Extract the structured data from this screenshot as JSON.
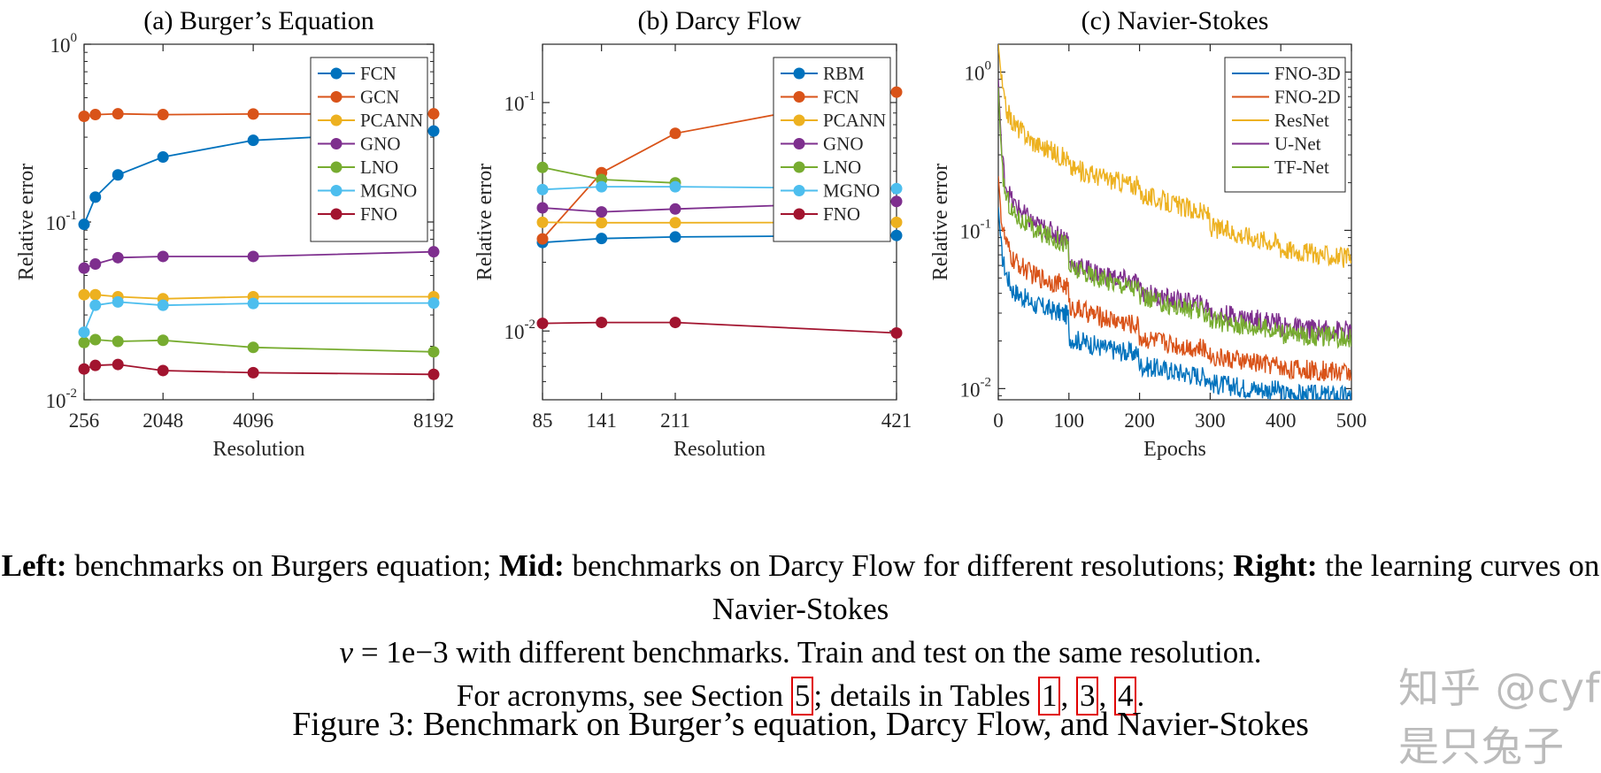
{
  "chart_data": [
    {
      "type": "line",
      "title": "(a) Burger’s Equation",
      "xlabel": "Resolution",
      "ylabel": "Relative error",
      "yscale": "log",
      "ylim": [
        0.01,
        1
      ],
      "xlim": [
        256,
        8192
      ],
      "xticks": [
        256,
        2048,
        4096,
        8192
      ],
      "xtick_labels": [
        "256",
        "2048",
        "4096",
        "8192"
      ],
      "yticks": [
        {
          "value": 1,
          "base": "10",
          "exp": "0"
        },
        {
          "value": 0.1,
          "base": "10",
          "exp": "-1"
        },
        {
          "value": 0.01,
          "base": "10",
          "exp": "-2"
        }
      ],
      "legend_position": "top-right",
      "x": [
        256,
        512,
        1024,
        2048,
        4096,
        8192
      ],
      "series": [
        {
          "name": "FCN",
          "color": "#0072BD",
          "values": [
            0.097,
            0.138,
            0.184,
            0.232,
            0.288,
            0.325
          ]
        },
        {
          "name": "GCN",
          "color": "#D95319",
          "values": [
            0.393,
            0.402,
            0.406,
            0.402,
            0.405,
            0.406
          ]
        },
        {
          "name": "PCANN",
          "color": "#EDB120",
          "values": [
            0.039,
            0.039,
            0.038,
            0.037,
            0.038,
            0.038
          ]
        },
        {
          "name": "GNO",
          "color": "#7E2F8E",
          "values": [
            0.055,
            0.058,
            0.063,
            0.064,
            0.064,
            0.068
          ]
        },
        {
          "name": "LNO",
          "color": "#77AC30",
          "values": [
            0.021,
            0.0218,
            0.0213,
            0.0216,
            0.0197,
            0.0186
          ]
        },
        {
          "name": "MGNO",
          "color": "#4DBEEE",
          "values": [
            0.024,
            0.034,
            0.0355,
            0.034,
            0.0348,
            0.035
          ]
        },
        {
          "name": "FNO",
          "color": "#A2142F",
          "values": [
            0.0149,
            0.0156,
            0.0158,
            0.0146,
            0.0142,
            0.0139
          ]
        }
      ]
    },
    {
      "type": "line",
      "title": "(b) Darcy Flow",
      "xlabel": "Resolution",
      "ylabel": "Relative error",
      "yscale": "log",
      "ylim": [
        0.005,
        0.18
      ],
      "xlim": [
        85,
        421
      ],
      "xticks": [
        85,
        141,
        211,
        421
      ],
      "xtick_labels": [
        "85",
        "141",
        "211",
        "421"
      ],
      "yticks": [
        {
          "value": 0.1,
          "base": "10",
          "exp": "-1"
        },
        {
          "value": 0.01,
          "base": "10",
          "exp": "-2"
        }
      ],
      "legend_position": "top-right",
      "x": [
        85,
        141,
        211,
        421
      ],
      "series": [
        {
          "name": "RBM",
          "color": "#0072BD",
          "values": [
            0.0244,
            0.0254,
            0.0258,
            0.0262
          ]
        },
        {
          "name": "FCN",
          "color": "#D95319",
          "values": [
            0.0253,
            0.0493,
            0.0733,
            0.1111
          ]
        },
        {
          "name": "PCANN",
          "color": "#EDB120",
          "values": [
            0.0299,
            0.0298,
            0.0298,
            0.0299
          ]
        },
        {
          "name": "GNO",
          "color": "#7E2F8E",
          "values": [
            0.0346,
            0.0332,
            0.0342,
            0.0369
          ]
        },
        {
          "name": "LNO",
          "color": "#77AC30",
          "values": [
            0.052,
            0.046,
            0.0445,
            null
          ]
        },
        {
          "name": "MGNO",
          "color": "#4DBEEE",
          "values": [
            0.0416,
            0.0428,
            0.0428,
            0.042
          ]
        },
        {
          "name": "FNO",
          "color": "#A2142F",
          "values": [
            0.0108,
            0.0109,
            0.0109,
            0.0098
          ]
        }
      ]
    },
    {
      "type": "line",
      "title": "(c) Navier-Stokes",
      "xlabel": "Epochs",
      "ylabel": "Relative error",
      "yscale": "log",
      "ylim": [
        0.0085,
        1.5
      ],
      "xlim": [
        0,
        500
      ],
      "xticks": [
        0,
        100,
        200,
        300,
        400,
        500
      ],
      "xtick_labels": [
        "0",
        "100",
        "200",
        "300",
        "400",
        "500"
      ],
      "yticks": [
        {
          "value": 1,
          "base": "10",
          "exp": "0"
        },
        {
          "value": 0.1,
          "base": "10",
          "exp": "-1"
        },
        {
          "value": 0.01,
          "base": "10",
          "exp": "-2"
        }
      ],
      "legend_position": "top-right",
      "x": [
        0,
        5,
        10,
        20,
        50,
        99,
        100,
        150,
        199,
        200,
        250,
        299,
        300,
        350,
        399,
        400,
        450,
        500
      ],
      "series": [
        {
          "name": "FNO-3D",
          "color": "#0072BD",
          "values": [
            0.14,
            0.07,
            0.055,
            0.042,
            0.034,
            0.029,
            0.021,
            0.018,
            0.0165,
            0.014,
            0.0128,
            0.0118,
            0.0108,
            0.0101,
            0.0097,
            0.0093,
            0.0091,
            0.009
          ]
        },
        {
          "name": "FNO-2D",
          "color": "#D95319",
          "values": [
            0.22,
            0.11,
            0.085,
            0.065,
            0.052,
            0.044,
            0.033,
            0.028,
            0.025,
            0.021,
            0.019,
            0.0175,
            0.016,
            0.0148,
            0.014,
            0.0134,
            0.013,
            0.0127
          ]
        },
        {
          "name": "ResNet",
          "color": "#EDB120",
          "values": [
            1.5,
            0.85,
            0.6,
            0.48,
            0.36,
            0.28,
            0.25,
            0.215,
            0.19,
            0.17,
            0.145,
            0.125,
            0.105,
            0.093,
            0.083,
            0.077,
            0.071,
            0.066
          ]
        },
        {
          "name": "U-Net",
          "color": "#7E2F8E",
          "values": [
            0.9,
            0.3,
            0.2,
            0.15,
            0.11,
            0.088,
            0.062,
            0.052,
            0.046,
            0.041,
            0.036,
            0.033,
            0.03,
            0.028,
            0.026,
            0.0245,
            0.0237,
            0.0232
          ]
        },
        {
          "name": "TF-Net",
          "color": "#77AC30",
          "values": [
            0.8,
            0.25,
            0.17,
            0.13,
            0.1,
            0.082,
            0.058,
            0.049,
            0.043,
            0.038,
            0.033,
            0.03,
            0.027,
            0.025,
            0.0235,
            0.0222,
            0.0215,
            0.021
          ]
        }
      ]
    }
  ],
  "caption": {
    "left_label": "Left:",
    "left_text": " benchmarks on Burgers equation; ",
    "mid_label": "Mid:",
    "mid_text": " benchmarks on Darcy Flow for different resolutions; ",
    "right_label": "Right:",
    "right_text": " the learning curves on Navier-Stokes ",
    "nu_symbol": "ν",
    "nu_value": " = 1e−3",
    "right_text_2": " with different benchmarks. Train and test on the same resolution.",
    "acronym_text": "For acronyms, see Section ",
    "section_ref": "5",
    "details_text": "; details in Tables ",
    "table_ref_1": "1",
    "sep_1": ", ",
    "table_ref_2": "3",
    "sep_2": ", ",
    "table_ref_3": "4",
    "end_text": "."
  },
  "figure_title": "Figure 3: Benchmark on Burger’s equation, Darcy Flow, and Navier-Stokes",
  "watermark": "知乎 @cyf是只兔子"
}
